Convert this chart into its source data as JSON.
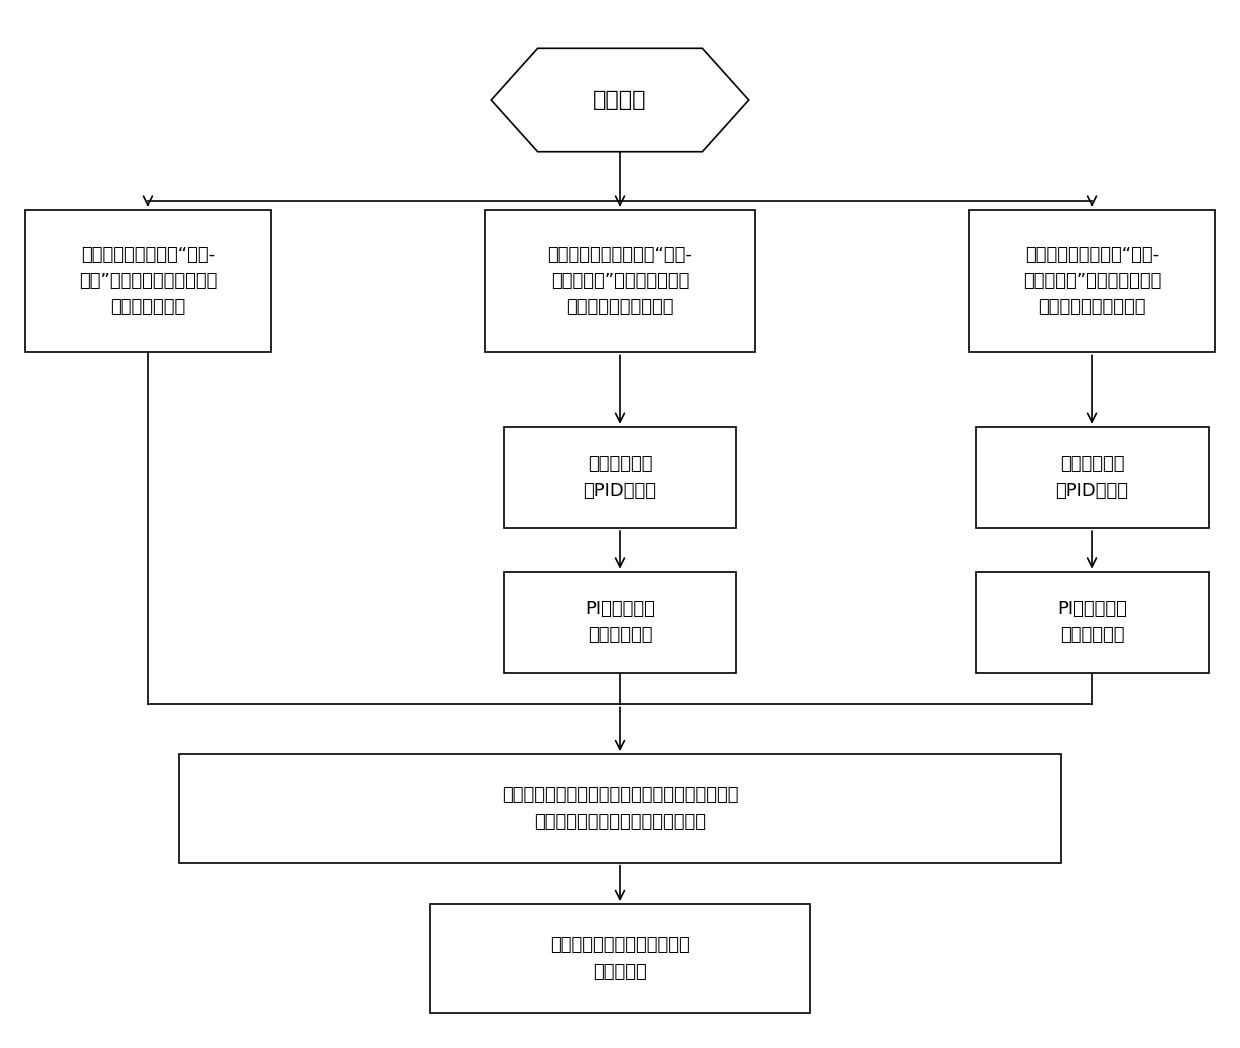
{
  "title": "开始起动",
  "bg_color": "#ffffff",
  "line_color": "#000000",
  "box_color": "#ffffff",
  "font_color": "#000000",
  "font_size": 14,
  "box1_text": "将实时转速测量值与“转速-\n开度”曲线进行匹配，得到第\n一燃调阀开度；",
  "box2_text": "根据实时转速测量值与“转速-\n转速爬坡率”曲线进行匹配，\n获得对应的转速爬坡率",
  "box3_text": "将实时转速测量值与“转速-\n温度爬坡率”曲线进行匹配，\n获得对应的温度爬坡率",
  "box4_text": "计算出当前转\n速PID给定值",
  "box5_text": "计算出当前温\n度PID给定值",
  "box6_text": "PI计算得到第\n二燃调阀开度",
  "box7_text": "PI计算得到第\n三燃调阀开度",
  "box8_text": "取第一燃调阀开度、第二燃调阀开度和第三燃调阀\n开度中的最小值作为最终燃调阀开度",
  "box9_text": "根据最终燃调阀开度给燃气轮\n机提供燃料"
}
